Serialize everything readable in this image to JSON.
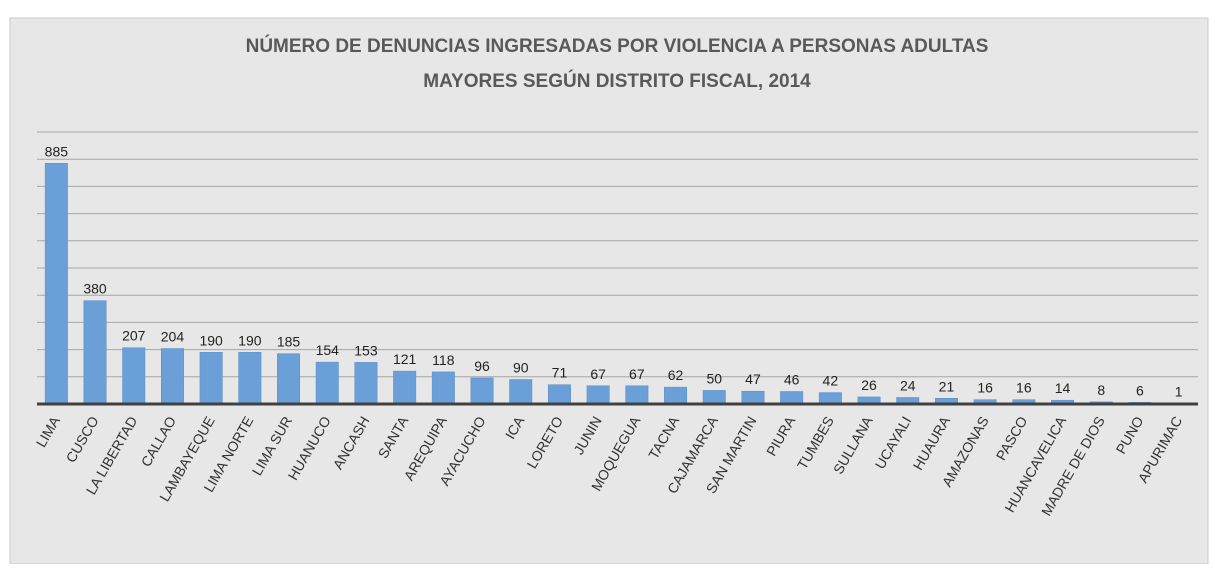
{
  "chart_data": {
    "type": "bar",
    "title": [
      "NÚMERO DE DENUNCIAS INGRESADAS POR VIOLENCIA A PERSONAS ADULTAS",
      "MAYORES SEGÚN DISTRITO FISCAL, 2014"
    ],
    "categories": [
      "LIMA",
      "CUSCO",
      "LA LIBERTAD",
      "CALLAO",
      "LAMBAYEQUE",
      "LIMA NORTE",
      "LIMA SUR",
      "HUANUCO",
      "ANCASH",
      "SANTA",
      "AREQUIPA",
      "AYACUCHO",
      "ICA",
      "LORETO",
      "JUNIN",
      "MOQUEGUA",
      "TACNA",
      "CAJAMARCA",
      "SAN MARTIN",
      "PIURA",
      "TUMBES",
      "SULLANA",
      "UCAYALI",
      "HUAURA",
      "AMAZONAS",
      "PASCO",
      "HUANCAVELICA",
      "MADRE DE DIOS",
      "PUNO",
      "APURIMAC"
    ],
    "values": [
      885,
      380,
      207,
      204,
      190,
      190,
      185,
      154,
      153,
      121,
      118,
      96,
      90,
      71,
      67,
      67,
      62,
      50,
      47,
      46,
      42,
      26,
      24,
      21,
      16,
      16,
      14,
      8,
      6,
      1
    ],
    "color": "#6a9fd8",
    "ylim": [
      0,
      1000
    ],
    "yticks": [
      0,
      100,
      200,
      300,
      400,
      500,
      600,
      700,
      800,
      900,
      1000
    ],
    "ytick_labels": false,
    "grid": true
  }
}
